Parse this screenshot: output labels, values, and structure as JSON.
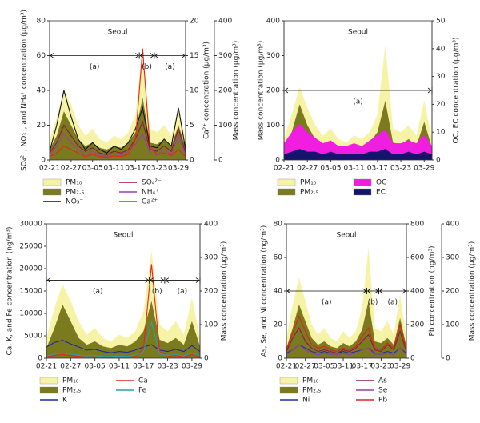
{
  "chart_data": [
    {
      "type": "line",
      "title": "Seoul",
      "periods": [
        "(a)",
        "(b)",
        "(a)"
      ],
      "categories": [
        "02-21",
        null,
        null,
        "02-27",
        null,
        null,
        "03-05",
        null,
        null,
        "03-11",
        null,
        null,
        "03-17",
        null,
        null,
        "03-23",
        null,
        null,
        "03-29",
        null
      ],
      "ylabel": "SO₄²⁻, NO₃⁻, and NH₄⁺ concentration (μg/m³)",
      "ylim": [
        0,
        80
      ],
      "yticks": [
        0,
        20,
        40,
        60,
        80
      ],
      "y2label": "Ca²⁺ concentration (μg/m³)",
      "y2lim": [
        0,
        20
      ],
      "y2ticks": [
        0,
        5,
        10,
        15,
        20
      ],
      "y3label": "Mass concentration (μg/m³)",
      "y3lim": [
        0,
        400
      ],
      "y3ticks": [
        0,
        100,
        200,
        300,
        400
      ],
      "series": [
        {
          "name": "PM₁₀",
          "style": "area",
          "axis": "y3",
          "color": "#f6f3a6",
          "values": [
            60,
            120,
            200,
            160,
            100,
            70,
            90,
            60,
            50,
            70,
            60,
            80,
            130,
            330,
            90,
            80,
            100,
            70,
            150,
            60
          ]
        },
        {
          "name": "PM₂.₅",
          "style": "area",
          "axis": "y3",
          "color": "#7c7a1e",
          "values": [
            30,
            70,
            140,
            100,
            60,
            40,
            50,
            35,
            30,
            40,
            35,
            50,
            80,
            180,
            50,
            45,
            60,
            40,
            100,
            35
          ]
        },
        {
          "name": "NO₃⁻",
          "style": "line",
          "axis": "y",
          "color": "#111111",
          "values": [
            5,
            20,
            40,
            25,
            12,
            6,
            10,
            6,
            4,
            8,
            6,
            10,
            18,
            30,
            8,
            7,
            12,
            8,
            30,
            6
          ]
        },
        {
          "name": "SO₄²⁻",
          "style": "line",
          "axis": "y",
          "color": "#8b1a3a",
          "values": [
            4,
            10,
            20,
            14,
            8,
            5,
            7,
            4,
            3,
            5,
            4,
            6,
            12,
            22,
            6,
            5,
            8,
            5,
            18,
            4
          ]
        },
        {
          "name": "NH₄⁺",
          "style": "line",
          "axis": "y",
          "color": "#9a3fb0",
          "values": [
            3,
            8,
            15,
            10,
            6,
            3,
            5,
            3,
            2,
            4,
            3,
            5,
            9,
            15,
            4,
            3,
            6,
            3,
            14,
            3
          ]
        },
        {
          "name": "Ca²⁺",
          "style": "line",
          "axis": "y2",
          "color": "#e8231e",
          "values": [
            0.5,
            1,
            2,
            1.5,
            1,
            0.5,
            0.8,
            0.5,
            0.4,
            0.6,
            0.5,
            0.8,
            3,
            16,
            2,
            0.8,
            1,
            0.6,
            1.5,
            0.5
          ]
        }
      ]
    },
    {
      "type": "line",
      "title": "Seoul",
      "periods": [
        "(a)"
      ],
      "categories": [
        "02-21",
        null,
        null,
        "02-27",
        null,
        null,
        "03-05",
        null,
        null,
        "03-11",
        null,
        null,
        "03-17",
        null,
        null,
        "03-23",
        null,
        null,
        "03-29",
        null
      ],
      "ylabel": "Mass concentration (μg/m³)",
      "ylim": [
        0,
        400
      ],
      "yticks": [
        0,
        100,
        200,
        300,
        400
      ],
      "y2label": "OC, EC concentration (μg/m³)",
      "y2lim": [
        0,
        50
      ],
      "y2ticks": [
        0,
        10,
        20,
        30,
        40,
        50
      ],
      "series": [
        {
          "name": "PM₁₀",
          "style": "area",
          "axis": "y",
          "color": "#f6f3a6",
          "values": [
            60,
            130,
            210,
            150,
            100,
            70,
            90,
            60,
            50,
            70,
            60,
            80,
            130,
            330,
            90,
            80,
            100,
            70,
            170,
            60
          ]
        },
        {
          "name": "PM₂.₅",
          "style": "area",
          "axis": "y",
          "color": "#7c7a1e",
          "values": [
            30,
            80,
            160,
            100,
            60,
            40,
            50,
            35,
            30,
            40,
            35,
            50,
            80,
            170,
            50,
            45,
            60,
            40,
            110,
            35
          ]
        },
        {
          "name": "OC",
          "style": "area",
          "axis": "y2",
          "color": "#f01ee0",
          "values": [
            6,
            10,
            13,
            10,
            8,
            6,
            7,
            5,
            5,
            6,
            5,
            7,
            9,
            11,
            6,
            6,
            7,
            6,
            9,
            5
          ]
        },
        {
          "name": "EC",
          "style": "area",
          "axis": "y2",
          "color": "#14146e",
          "values": [
            2,
            3,
            4,
            3,
            3,
            2,
            3,
            2,
            2,
            2,
            2,
            3,
            3,
            4,
            2,
            2,
            3,
            2,
            3,
            2
          ]
        }
      ]
    },
    {
      "type": "line",
      "title": "Seoul",
      "periods": [
        "(a)",
        "(b)",
        "(a)"
      ],
      "categories": [
        "02-21",
        null,
        null,
        "02-27",
        null,
        null,
        "03-05",
        null,
        null,
        "03-11",
        null,
        null,
        "03-17",
        null,
        null,
        "03-23",
        null,
        null,
        "03-29",
        null
      ],
      "ylabel": "Ca, K, and Fe concentration (ng/m³)",
      "ylim": [
        0,
        30000
      ],
      "yticks": [
        0,
        5000,
        10000,
        15000,
        20000,
        25000,
        30000
      ],
      "y2label": "Mass concentration (μg/m³)",
      "y2lim": [
        0,
        400
      ],
      "y2ticks": [
        0,
        100,
        200,
        300,
        400
      ],
      "series": [
        {
          "name": "PM₁₀",
          "style": "area",
          "axis": "y2",
          "color": "#f6f3a6",
          "values": [
            60,
            150,
            220,
            170,
            110,
            70,
            90,
            60,
            50,
            70,
            60,
            80,
            140,
            320,
            100,
            80,
            110,
            70,
            180,
            60
          ]
        },
        {
          "name": "PM₂.₅",
          "style": "area",
          "axis": "y2",
          "color": "#7c7a1e",
          "values": [
            30,
            90,
            160,
            110,
            60,
            40,
            50,
            35,
            30,
            40,
            35,
            50,
            80,
            170,
            55,
            45,
            60,
            40,
            110,
            35
          ]
        },
        {
          "name": "K",
          "style": "line",
          "axis": "y",
          "color": "#1a2a9a",
          "values": [
            2500,
            3500,
            4000,
            3200,
            2500,
            1800,
            2000,
            1500,
            1200,
            1500,
            1300,
            1800,
            2500,
            3000,
            1800,
            1500,
            2000,
            1500,
            2800,
            1500
          ]
        },
        {
          "name": "Ca",
          "style": "line",
          "axis": "y",
          "color": "#e8231e",
          "values": [
            300,
            600,
            800,
            600,
            400,
            300,
            300,
            200,
            200,
            300,
            200,
            400,
            2000,
            21000,
            1500,
            500,
            600,
            300,
            800,
            300
          ]
        },
        {
          "name": "Fe",
          "style": "line",
          "axis": "y",
          "color": "#2aa0a8",
          "values": [
            500,
            900,
            1200,
            900,
            700,
            500,
            600,
            400,
            400,
            500,
            400,
            700,
            1500,
            8000,
            1000,
            600,
            800,
            500,
            1200,
            500
          ]
        }
      ]
    },
    {
      "type": "line",
      "title": "Seoul",
      "periods": [
        "(a)",
        "(b)",
        "(a)"
      ],
      "categories": [
        "02-21",
        null,
        null,
        "02-27",
        null,
        null,
        "03-05",
        null,
        null,
        "03-11",
        null,
        null,
        "03-17",
        null,
        null,
        "03-23",
        null,
        null,
        "03-29",
        null
      ],
      "ylabel": "As, Se, and Ni concentration (ng/m³)",
      "ylim": [
        0,
        80
      ],
      "yticks": [
        0,
        20,
        40,
        60,
        80
      ],
      "y2label": "Pb concentration (ng/m³)",
      "y2lim": [
        0,
        800
      ],
      "y2ticks": [
        0,
        200,
        400,
        600,
        800
      ],
      "y3label": "Mass concentration (μg/m³)",
      "y3lim": [
        0,
        400
      ],
      "y3ticks": [
        0,
        100,
        200,
        300,
        400
      ],
      "series": [
        {
          "name": "PM₁₀",
          "style": "area",
          "axis": "y3",
          "color": "#f6f3a6",
          "values": [
            60,
            160,
            240,
            170,
            100,
            70,
            90,
            60,
            50,
            80,
            60,
            80,
            150,
            330,
            90,
            80,
            110,
            70,
            190,
            60
          ]
        },
        {
          "name": "PM₂.₅",
          "style": "area",
          "axis": "y3",
          "color": "#7c7a1e",
          "values": [
            30,
            90,
            160,
            110,
            60,
            40,
            50,
            35,
            30,
            45,
            35,
            50,
            85,
            170,
            50,
            45,
            60,
            40,
            120,
            35
          ]
        },
        {
          "name": "Ni",
          "style": "line",
          "axis": "y",
          "color": "#2030a0",
          "values": [
            3,
            5,
            8,
            6,
            4,
            3,
            4,
            3,
            3,
            4,
            3,
            4,
            5,
            6,
            3,
            3,
            4,
            3,
            6,
            3
          ]
        },
        {
          "name": "As",
          "style": "line",
          "axis": "y",
          "color": "#8b1a4a",
          "values": [
            4,
            12,
            18,
            10,
            6,
            4,
            5,
            4,
            3,
            5,
            4,
            6,
            10,
            14,
            5,
            4,
            8,
            5,
            16,
            4
          ]
        },
        {
          "name": "Se",
          "style": "line",
          "axis": "y",
          "color": "#9040a0",
          "values": [
            2,
            5,
            8,
            5,
            3,
            2,
            3,
            2,
            2,
            3,
            2,
            3,
            5,
            6,
            2,
            2,
            3,
            2,
            6,
            2
          ]
        },
        {
          "name": "Pb",
          "style": "line",
          "axis": "y2",
          "color": "#e02020",
          "values": [
            50,
            150,
            250,
            160,
            80,
            60,
            70,
            50,
            40,
            60,
            50,
            70,
            130,
            180,
            60,
            50,
            90,
            60,
            200,
            50
          ]
        }
      ]
    }
  ]
}
